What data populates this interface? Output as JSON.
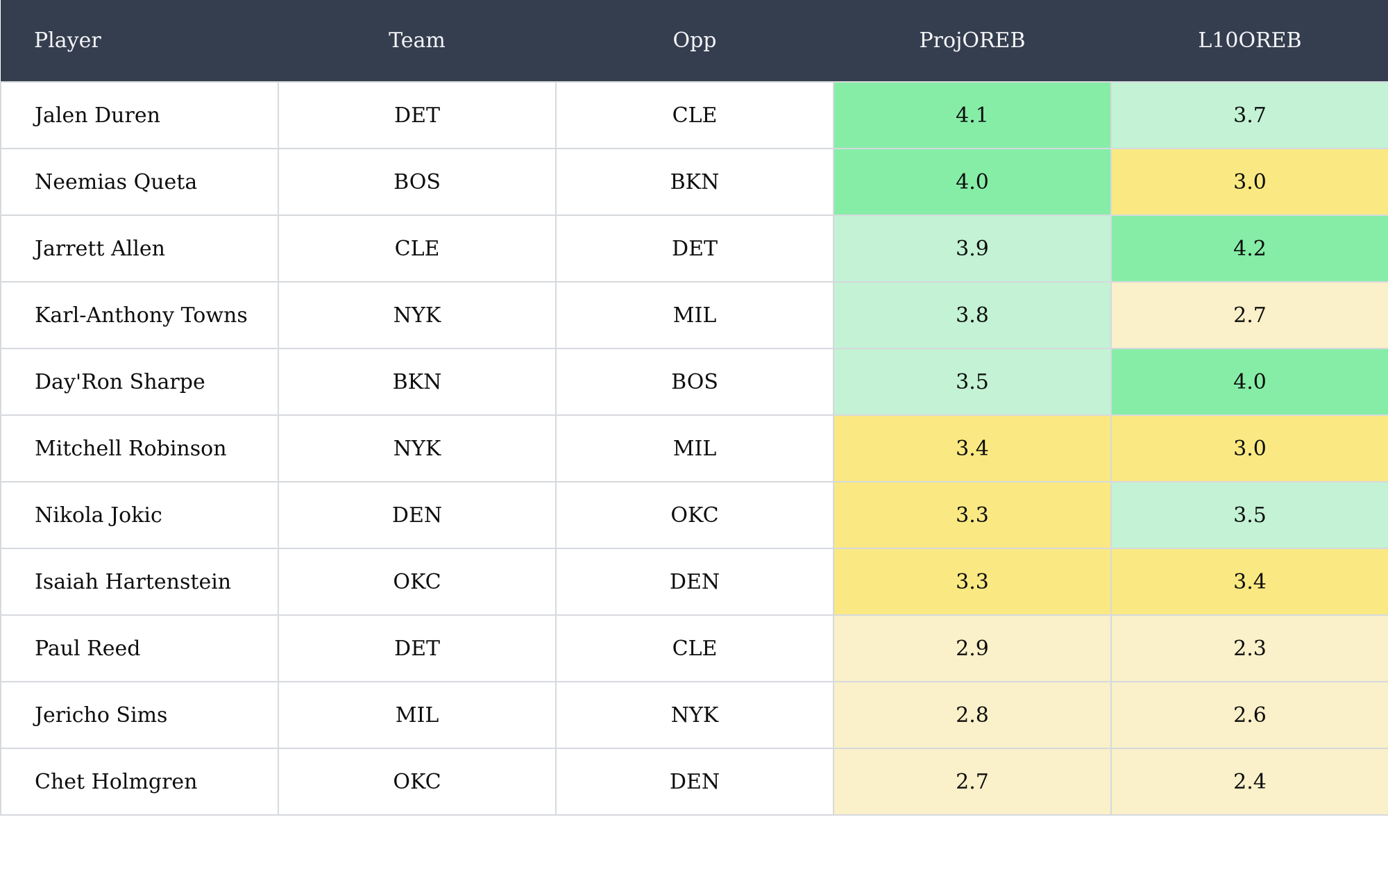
{
  "colors": {
    "header_bg": "#353e4f",
    "header_text": "#f4f5f7",
    "border": "#d6d9dd",
    "cell_text": "#0d0d0d",
    "row_bg": "#ffffff",
    "tiers": {
      "green-strong": "#86eda7",
      "green-light": "#c3f2d5",
      "yellow-strong": "#fae982",
      "yellow-light": "#faf0c9"
    }
  },
  "table": {
    "headers": {
      "player": "Player",
      "team": "Team",
      "opp": "Opp",
      "proj": "ProjOREB",
      "l10": "L10OREB"
    },
    "rows": [
      {
        "player": "Jalen Duren",
        "team": "DET",
        "opp": "CLE",
        "proj": "4.1",
        "proj_tier": "green-strong",
        "l10": "3.7",
        "l10_tier": "green-light"
      },
      {
        "player": "Neemias Queta",
        "team": "BOS",
        "opp": "BKN",
        "proj": "4.0",
        "proj_tier": "green-strong",
        "l10": "3.0",
        "l10_tier": "yellow-strong"
      },
      {
        "player": "Jarrett Allen",
        "team": "CLE",
        "opp": "DET",
        "proj": "3.9",
        "proj_tier": "green-light",
        "l10": "4.2",
        "l10_tier": "green-strong"
      },
      {
        "player": "Karl-Anthony Towns",
        "team": "NYK",
        "opp": "MIL",
        "proj": "3.8",
        "proj_tier": "green-light",
        "l10": "2.7",
        "l10_tier": "yellow-light"
      },
      {
        "player": "Day'Ron Sharpe",
        "team": "BKN",
        "opp": "BOS",
        "proj": "3.5",
        "proj_tier": "green-light",
        "l10": "4.0",
        "l10_tier": "green-strong"
      },
      {
        "player": "Mitchell Robinson",
        "team": "NYK",
        "opp": "MIL",
        "proj": "3.4",
        "proj_tier": "yellow-strong",
        "l10": "3.0",
        "l10_tier": "yellow-strong"
      },
      {
        "player": "Nikola Jokic",
        "team": "DEN",
        "opp": "OKC",
        "proj": "3.3",
        "proj_tier": "yellow-strong",
        "l10": "3.5",
        "l10_tier": "green-light"
      },
      {
        "player": "Isaiah Hartenstein",
        "team": "OKC",
        "opp": "DEN",
        "proj": "3.3",
        "proj_tier": "yellow-strong",
        "l10": "3.4",
        "l10_tier": "yellow-strong"
      },
      {
        "player": "Paul Reed",
        "team": "DET",
        "opp": "CLE",
        "proj": "2.9",
        "proj_tier": "yellow-light",
        "l10": "2.3",
        "l10_tier": "yellow-light"
      },
      {
        "player": "Jericho Sims",
        "team": "MIL",
        "opp": "NYK",
        "proj": "2.8",
        "proj_tier": "yellow-light",
        "l10": "2.6",
        "l10_tier": "yellow-light"
      },
      {
        "player": "Chet Holmgren",
        "team": "OKC",
        "opp": "DEN",
        "proj": "2.7",
        "proj_tier": "yellow-light",
        "l10": "2.4",
        "l10_tier": "yellow-light"
      }
    ]
  }
}
